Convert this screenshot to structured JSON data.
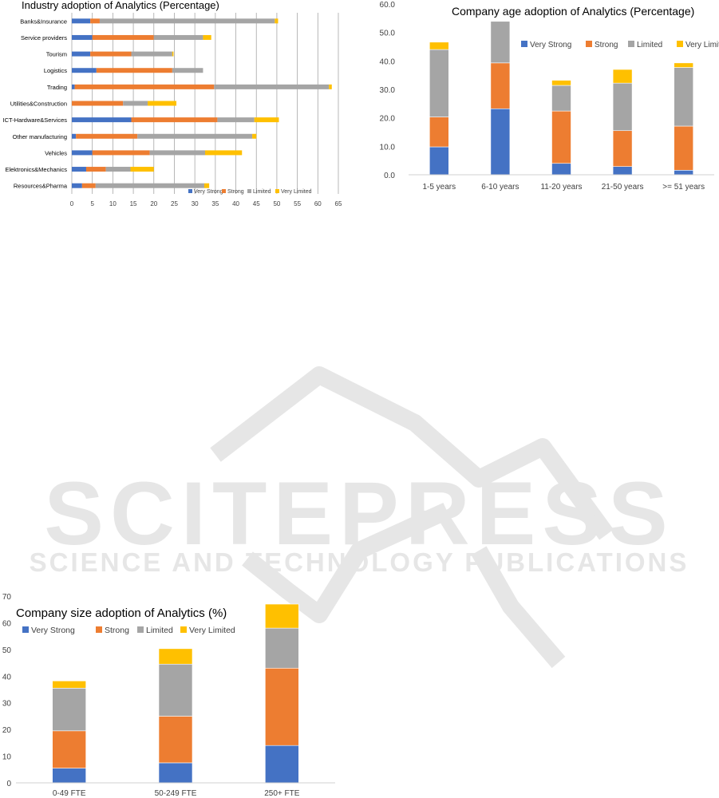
{
  "colors": {
    "very_strong": "#4472C4",
    "strong": "#ED7D31",
    "limited": "#A5A5A5",
    "very_limited": "#FFC000",
    "grid": "#BFBFBF",
    "watermark": "#E6E6E6"
  },
  "legend_labels": [
    "Very Strong",
    "Strong",
    "Limited",
    "Very Limited"
  ],
  "watermark": {
    "logo": "SCITEPRESS",
    "tagline": "SCIENCE AND TECHNOLOGY PUBLICATIONS"
  },
  "chart_data": [
    {
      "type": "bar",
      "orientation": "horizontal",
      "stacked": true,
      "title": "Industry adoption of Analytics (Percentage)",
      "categories": [
        "Banks&Insurance",
        "Service providers",
        "Tourism",
        "Logistics",
        "Trading",
        "Utilities&Construction",
        "ICT-Hardware&Services",
        "Other manufacturing",
        "Vehicles",
        "Elektronics&Mechanics",
        "Resources&Pharma"
      ],
      "series": [
        {
          "name": "Very Strong",
          "values": [
            4.5,
            5,
            4.5,
            6,
            0.7,
            0,
            14.5,
            1,
            5,
            3.5,
            2.5
          ]
        },
        {
          "name": "Strong",
          "values": [
            2.3,
            15,
            10,
            18.5,
            34,
            12.5,
            21,
            15,
            14,
            4.8,
            3.3
          ]
        },
        {
          "name": "Limited",
          "values": [
            42.7,
            12,
            10,
            7.5,
            28,
            6,
            9,
            28,
            13.5,
            6,
            26.5
          ]
        },
        {
          "name": "Very Limited",
          "values": [
            0.8,
            2,
            0.3,
            0,
            0.7,
            7,
            6,
            1,
            9,
            5.7,
            1.2
          ]
        }
      ],
      "xlim": [
        0,
        65
      ],
      "xticks": [
        "0",
        "5",
        "10",
        "15",
        "20",
        "25",
        "30",
        "35",
        "40",
        "45",
        "50",
        "55",
        "60",
        "65"
      ],
      "grid": "vertical",
      "legend_position": "bottom-right"
    },
    {
      "type": "bar",
      "stacked": true,
      "title": "Company age adoption of Analytics (Percentage)",
      "categories": [
        "1-5 years",
        "6-10 years",
        "11-20 years",
        "21-50 years",
        ">= 51 years"
      ],
      "series": [
        {
          "name": "Very Strong",
          "values": [
            9.8,
            23.2,
            4,
            2.9,
            1.6
          ]
        },
        {
          "name": "Strong",
          "values": [
            10.5,
            16.1,
            18.4,
            12.6,
            15.5
          ]
        },
        {
          "name": "Limited",
          "values": [
            23.7,
            14.6,
            9,
            16.7,
            20.6
          ]
        },
        {
          "name": "Very Limited",
          "values": [
            2.6,
            0,
            1.8,
            4.8,
            1.6
          ]
        }
      ],
      "ylim": [
        0,
        60
      ],
      "yticks": [
        "0.0",
        "10.0",
        "20.0",
        "30.0",
        "40.0",
        "50.0",
        "60.0"
      ],
      "grid": false,
      "legend_position": "top-right"
    },
    {
      "type": "bar",
      "stacked": true,
      "title": "Company size adoption of Analytics (%)",
      "categories": [
        "0-49 FTE",
        "50-249 FTE",
        "250+ FTE"
      ],
      "series": [
        {
          "name": "Very Strong",
          "values": [
            5.5,
            7.5,
            14
          ]
        },
        {
          "name": "Strong",
          "values": [
            14,
            17.5,
            29
          ]
        },
        {
          "name": "Limited",
          "values": [
            16,
            19.5,
            15
          ]
        },
        {
          "name": "Very Limited",
          "values": [
            2.7,
            5.8,
            9
          ]
        }
      ],
      "ylim": [
        0,
        70
      ],
      "yticks": [
        "0",
        "10",
        "20",
        "30",
        "40",
        "50",
        "60",
        "70"
      ],
      "grid": false,
      "legend_position": "top-left"
    }
  ]
}
